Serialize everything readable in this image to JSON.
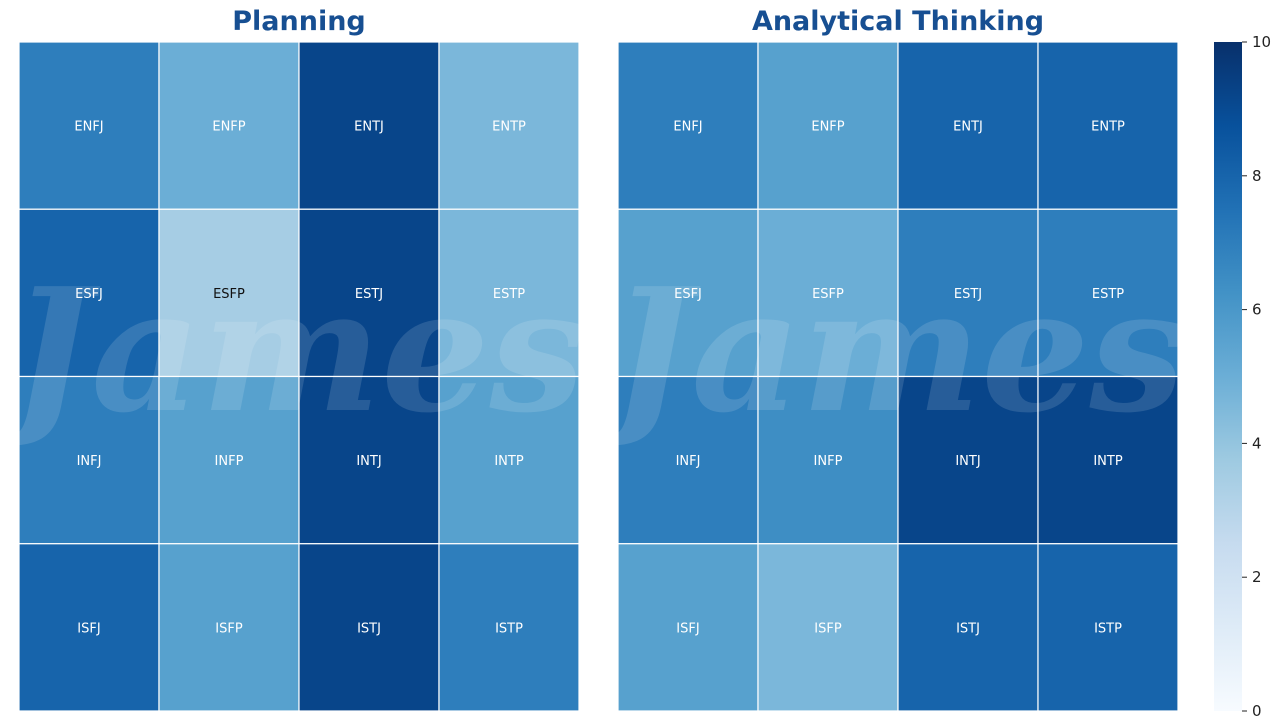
{
  "watermark": "James",
  "chart_data": {
    "type": "heatmap",
    "colormap": "Blues",
    "vmin": 0,
    "vmax": 10,
    "colorbar_ticks": [
      0,
      2,
      4,
      6,
      8,
      10
    ],
    "grid_line_color": "#ffffff",
    "panels": [
      {
        "title": "Planning",
        "cells": [
          [
            {
              "label": "ENFJ",
              "value": 7.0
            },
            {
              "label": "ENFP",
              "value": 5.0
            },
            {
              "label": "ENTJ",
              "value": 9.2
            },
            {
              "label": "ENTP",
              "value": 4.6
            }
          ],
          [
            {
              "label": "ESFJ",
              "value": 8.0
            },
            {
              "label": "ESFP",
              "value": 3.5
            },
            {
              "label": "ESTJ",
              "value": 9.2
            },
            {
              "label": "ESTP",
              "value": 4.6
            }
          ],
          [
            {
              "label": "INFJ",
              "value": 7.0
            },
            {
              "label": "INFP",
              "value": 5.6
            },
            {
              "label": "INTJ",
              "value": 9.2
            },
            {
              "label": "INTP",
              "value": 5.6
            }
          ],
          [
            {
              "label": "ISFJ",
              "value": 8.0
            },
            {
              "label": "ISFP",
              "value": 5.6
            },
            {
              "label": "ISTJ",
              "value": 9.2
            },
            {
              "label": "ISTP",
              "value": 7.0
            }
          ]
        ]
      },
      {
        "title": "Analytical Thinking",
        "cells": [
          [
            {
              "label": "ENFJ",
              "value": 7.0
            },
            {
              "label": "ENFP",
              "value": 5.6
            },
            {
              "label": "ENTJ",
              "value": 8.0
            },
            {
              "label": "ENTP",
              "value": 8.0
            }
          ],
          [
            {
              "label": "ESFJ",
              "value": 5.6
            },
            {
              "label": "ESFP",
              "value": 5.0
            },
            {
              "label": "ESTJ",
              "value": 7.0
            },
            {
              "label": "ESTP",
              "value": 7.0
            }
          ],
          [
            {
              "label": "INFJ",
              "value": 7.0
            },
            {
              "label": "INFP",
              "value": 6.4
            },
            {
              "label": "INTJ",
              "value": 9.2
            },
            {
              "label": "INTP",
              "value": 9.2
            }
          ],
          [
            {
              "label": "ISFJ",
              "value": 5.6
            },
            {
              "label": "ISFP",
              "value": 4.6
            },
            {
              "label": "ISTJ",
              "value": 8.0
            },
            {
              "label": "ISTP",
              "value": 8.0
            }
          ]
        ]
      }
    ]
  }
}
